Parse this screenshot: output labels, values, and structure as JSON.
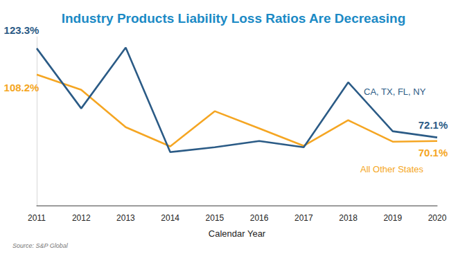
{
  "chart_data": {
    "type": "line",
    "title": "Industry Products Liability Loss Ratios Are Decreasing",
    "x_label": "Calendar Year",
    "source": "Source: S&P Global",
    "categories": [
      "2011",
      "2012",
      "2013",
      "2014",
      "2015",
      "2016",
      "2017",
      "2018",
      "2019",
      "2020"
    ],
    "series": [
      {
        "name": "CA, TX, FL, NY",
        "color": "#2b5b86",
        "values": [
          123.3,
          88.8,
          123.7,
          63.7,
          66.5,
          70.1,
          66.5,
          103.8,
          75.7,
          72.1
        ],
        "value_labels": [
          "123.3%",
          null,
          null,
          null,
          null,
          null,
          null,
          null,
          null,
          "72.1%"
        ]
      },
      {
        "name": "All Other States",
        "color": "#f5a623",
        "values": [
          108.2,
          99.5,
          78.0,
          67.0,
          87.2,
          77.3,
          67.3,
          82.0,
          69.7,
          70.1
        ],
        "value_labels": [
          "108.2%",
          null,
          null,
          null,
          null,
          null,
          null,
          null,
          null,
          "70.1%"
        ]
      }
    ],
    "ylim": [
      33,
      130
    ],
    "yticks": [],
    "grid": false,
    "tick_labels": "x"
  }
}
